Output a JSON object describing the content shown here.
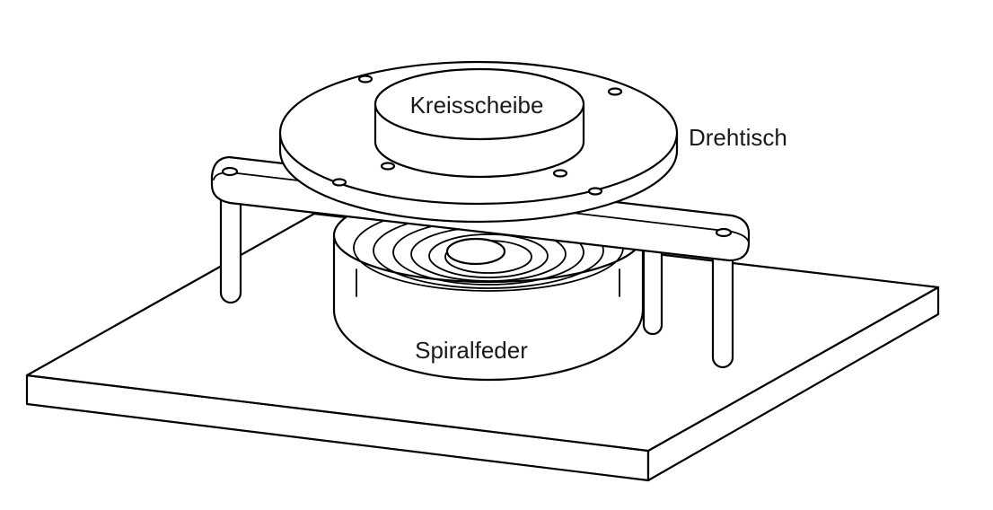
{
  "labels": {
    "disc": "Kreisscheibe",
    "turntable": "Drehtisch",
    "spring": "Spiralfeder"
  },
  "colors": {
    "line": "#000000",
    "fill": "#ffffff",
    "text": "#1a1a1a"
  }
}
